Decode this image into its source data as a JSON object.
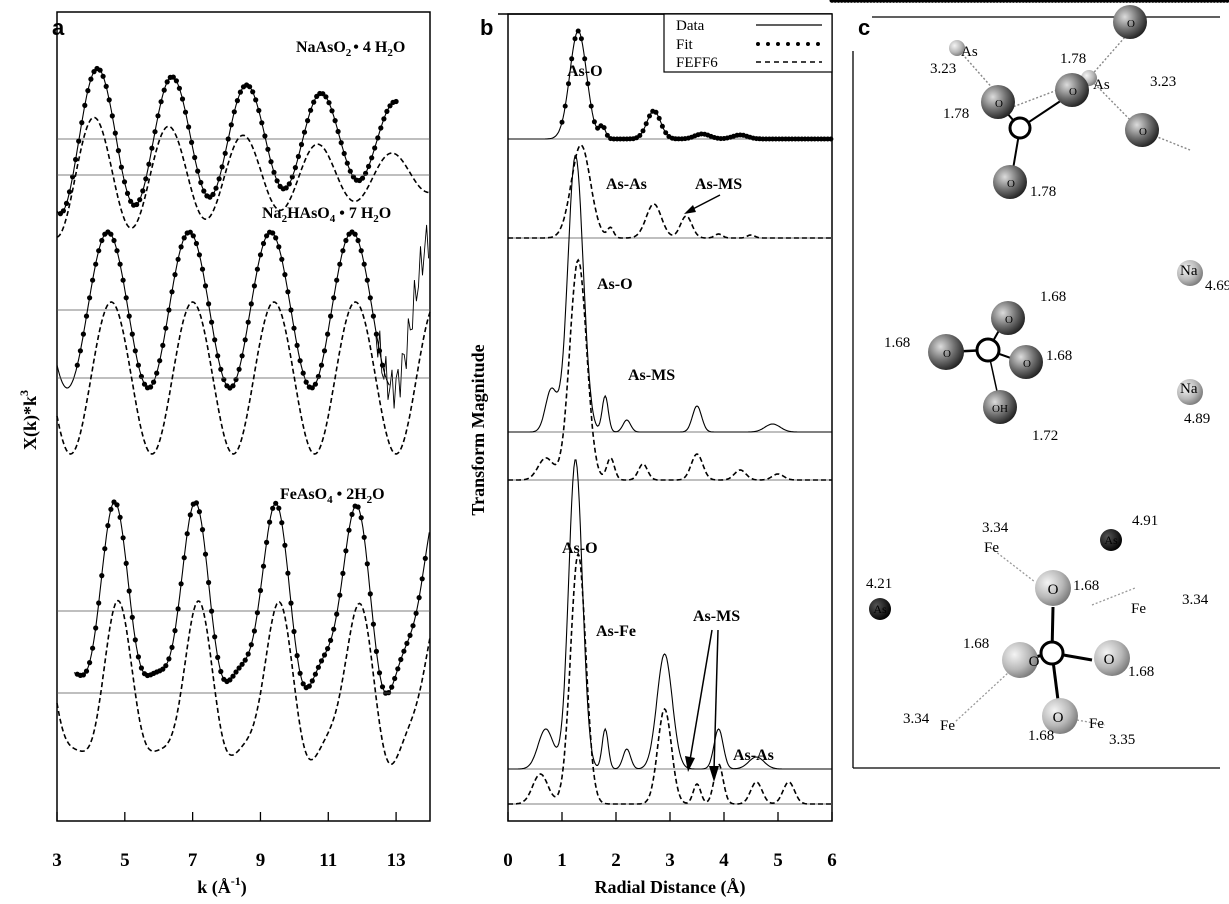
{
  "chart_data": [
    {
      "panel": "a",
      "type": "line",
      "xlabel": "k (Å",
      "xlabel_sup": "-1",
      "xlabel_close": ")",
      "ylabel": "X(k)*k",
      "ylabel_sup": "3",
      "xlim": [
        3,
        14
      ],
      "x_ticks": [
        "3",
        "5",
        "7",
        "9",
        "11",
        "13"
      ],
      "compounds": [
        {
          "label": "NaAsO₂ • 4 H₂O",
          "peaks_k": [
            4.2,
            6.5,
            8.7,
            10.8,
            12.7
          ],
          "troughs_k": [
            5.5,
            7.6,
            9.8,
            11.8
          ]
        },
        {
          "label": "Na₂HAsO₄ • 7 H₂O",
          "peaks_k": [
            4.5,
            7.0,
            9.4,
            11.7
          ],
          "troughs_k": [
            5.8,
            8.2,
            10.5,
            12.8
          ]
        },
        {
          "label": "FeAsO₄ • 2H₂O",
          "peaks_k": [
            4.7,
            7.1,
            9.4,
            11.5,
            13.4
          ],
          "troughs_k": [
            3.4,
            5.6,
            8.3,
            10.4,
            13.1
          ]
        }
      ],
      "legend": [],
      "grid": false
    },
    {
      "panel": "b",
      "type": "line",
      "xlabel": "Radial Distance (Å)",
      "ylabel": "Transform Magnitude",
      "xlim": [
        0,
        6
      ],
      "x_ticks": [
        "0",
        "1",
        "2",
        "3",
        "4",
        "5",
        "6"
      ],
      "legend": {
        "placement": "top-right",
        "entries": [
          "Data",
          "Fit",
          "FEFF6"
        ]
      },
      "series": [
        {
          "name": "Data",
          "style": "solid"
        },
        {
          "name": "Fit",
          "style": "dotted"
        },
        {
          "name": "FEFF6",
          "style": "dashed"
        }
      ],
      "compounds": [
        {
          "main_peak_r": 1.3,
          "secondary_peaks_r": [
            1.7,
            2.7
          ],
          "annotations": [
            "As-O",
            "As-As",
            "As-MS"
          ]
        },
        {
          "main_peak_r": 1.25,
          "secondary_peaks_r": [
            1.8,
            3.5,
            4.9
          ],
          "annotations": [
            "As-O",
            "As-MS"
          ]
        },
        {
          "main_peak_r": 1.25,
          "secondary_peaks_r": [
            2.9,
            3.9
          ],
          "annotations": [
            "As-O",
            "As-Fe",
            "As-MS",
            "As-As"
          ]
        }
      ]
    },
    {
      "panel": "c",
      "type": "diagram",
      "structures": [
        {
          "atoms": [
            "As",
            "As",
            "O",
            "O",
            "O",
            "O"
          ],
          "distances": [
            "3.23",
            "1.78",
            "1.78",
            "3.23",
            "1.78"
          ]
        },
        {
          "atoms": [
            "O",
            "O",
            "O",
            "OH",
            "Na",
            "Na"
          ],
          "distances": [
            "1.68",
            "1.68",
            "1.68",
            "1.72",
            "4.69",
            "4.89"
          ]
        },
        {
          "atoms": [
            "As",
            "As",
            "Fe",
            "Fe",
            "Fe",
            "Fe",
            "O",
            "O",
            "O",
            "O"
          ],
          "distances": [
            "4.91",
            "4.21",
            "3.34",
            "3.34",
            "3.34",
            "3.35",
            "1.68",
            "1.68",
            "1.68",
            "1.68"
          ]
        }
      ]
    }
  ],
  "text": {
    "a_lbl": "a",
    "b_lbl": "b",
    "c_lbl": "c",
    "a_c1_pre": "NaAsO",
    "a_c1_sub": "2",
    "a_c1_mid": "• 4 H",
    "a_c1_sub2": "2",
    "a_c1_end": "O",
    "a_c2_pre": "Na",
    "a_c2_sub": "2",
    "a_c2_mid": "HAsO",
    "a_c2_sub2": "4",
    "a_c2_mid2": " • 7 H",
    "a_c2_sub3": "2",
    "a_c2_end": "O",
    "a_c3": "FeAsO",
    "a_c3_sub": "4",
    "a_c3_mid": " • 2H",
    "a_c3_sub2": "2",
    "a_c3_end": "O",
    "a_xlabel": "k (Å",
    "a_xsup": "-1",
    "a_xclose": ")",
    "a_ylabel": "X(k)*k",
    "a_ysup": "3",
    "b_ylabel": "Transform Magnitude",
    "b_xlabel": "Radial Distance (Å)",
    "leg_data": "Data",
    "leg_fit": "Fit",
    "leg_feff": "FEFF6",
    "ann_aso1": "As-O",
    "ann_asas1": "As-As",
    "ann_asms1": "As-MS",
    "ann_aso2": "As-O",
    "ann_asms2": "As-MS",
    "ann_aso3": "As-O",
    "ann_asfe3": "As-Fe",
    "ann_asms3": "As-MS",
    "ann_asas3": "As-As",
    "c1_d1": "3.23",
    "c1_as1": "As",
    "c1_d2": "1.78",
    "c1_d3": "1.78",
    "c1_as2": "As",
    "c1_d4": "3.23",
    "c1_d5": "1.78",
    "c1_o1": "O",
    "c1_o2": "O",
    "c1_o3": "O",
    "c1_o4": "O",
    "c1_o5": "O",
    "c2_d1": "1.68",
    "c2_d2": "1.68",
    "c2_d3": "1.68",
    "c2_d4": "1.72",
    "c2_na1": "Na",
    "c2_nad1": "4.69",
    "c2_na2": "Na",
    "c2_nad2": "4.89",
    "c2_o1": "O",
    "c2_o2": "O",
    "c2_o3": "O",
    "c2_oh": "OH",
    "c3_d1": "3.34",
    "c3_fe1": "Fe",
    "c3_as1": "As",
    "c3_asd1": "4.91",
    "c3_as2": "As",
    "c3_asd2": "4.21",
    "c3_d2": "1.68",
    "c3_fe2": "Fe",
    "c3_d3": "3.34",
    "c3_d4": "1.68",
    "c3_d5": "1.68",
    "c3_d6": "3.34",
    "c3_fe3": "Fe",
    "c3_d7": "1.68",
    "c3_fe4": "Fe",
    "c3_d8": "3.35",
    "c3_o1": "O",
    "c3_o2": "O",
    "c3_o3": "O",
    "c3_o4": "O"
  }
}
